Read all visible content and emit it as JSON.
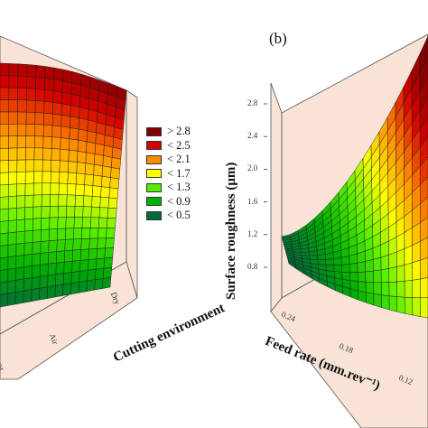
{
  "chart_data": [
    {
      "type": "surface",
      "panel": "",
      "xlabel": "Cutting environment",
      "x_ticks": [
        "QL",
        "Air",
        "Dry"
      ],
      "zlabel": "",
      "legend": {
        "items": [
          {
            "label": "> 2.8",
            "color": "#7f0000"
          },
          {
            "label": "< 2.5",
            "color": "#d40000"
          },
          {
            "label": "< 2.1",
            "color": "#ff8c00"
          },
          {
            "label": "< 1.7",
            "color": "#ffff00"
          },
          {
            "label": "< 1.3",
            "color": "#55ee00"
          },
          {
            "label": "< 0.9",
            "color": "#00b000"
          },
          {
            "label": "< 0.5",
            "color": "#006a3c"
          }
        ]
      }
    },
    {
      "type": "surface",
      "panel": "(b)",
      "xlabel": "Feed rate (mm.rev⁻¹)",
      "x_ticks": [
        "0.24",
        "0.18",
        "0.12"
      ],
      "x_values": [
        0.24,
        0.18,
        0.12
      ],
      "zlabel": "Surface roughness (μm)",
      "z_ticks": [
        "0.8",
        "1.2",
        "1.6",
        "2.0",
        "2.4",
        "2.8"
      ],
      "z_values": [
        0.8,
        1.2,
        1.6,
        2.0,
        2.4,
        2.8
      ],
      "zlim": [
        0.8,
        2.8
      ]
    }
  ],
  "colors": {
    "wall": "#f8e3d6",
    "wall_edge": "#555555",
    "grid_line": "#1a1a1a"
  }
}
